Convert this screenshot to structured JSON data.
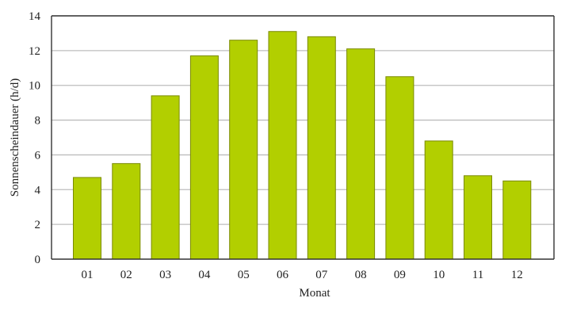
{
  "chart_data": {
    "type": "bar",
    "categories": [
      "01",
      "02",
      "03",
      "04",
      "05",
      "06",
      "07",
      "08",
      "09",
      "10",
      "11",
      "12"
    ],
    "values": [
      4.7,
      5.5,
      9.4,
      11.7,
      12.6,
      13.1,
      12.8,
      12.1,
      10.5,
      6.8,
      4.8,
      4.5
    ],
    "xlabel": "Monat",
    "ylabel": "Sonnenscheindauer (h/d)",
    "ylim": [
      0,
      14
    ],
    "yticks": [
      0,
      2,
      4,
      6,
      8,
      10,
      12,
      14
    ],
    "grid": true,
    "bar_color": "#b2cf00",
    "bar_edge_color": "#7a8a00"
  }
}
